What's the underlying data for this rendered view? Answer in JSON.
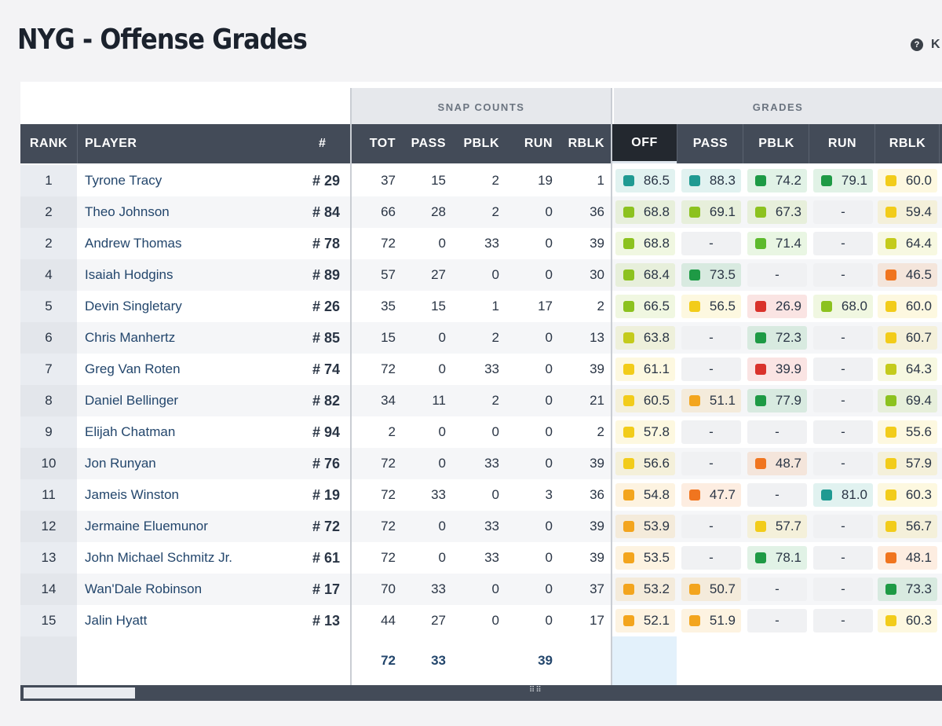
{
  "title": "NYG - Offense Grades",
  "key_label": "K",
  "groups": {
    "snap": "SNAP COUNTS",
    "grades": "GRADES"
  },
  "columns": {
    "rank": "RANK",
    "player": "PLAYER",
    "number": "#",
    "tot": "TOT",
    "pass": "PASS",
    "pblk": "PBLK",
    "run": "RUN",
    "rblk": "RBLK",
    "g_off": "OFF",
    "g_pass": "PASS",
    "g_pblk": "PBLK",
    "g_run": "RUN",
    "g_rblk": "RBLK"
  },
  "rows": [
    {
      "rank": "1",
      "player": "Tyrone Tracy",
      "number": "# 29",
      "tot": "37",
      "pass": "15",
      "pblk": "2",
      "run": "19",
      "rblk": "1",
      "off": "86.5",
      "g_pass": "88.3",
      "g_pblk": "74.2",
      "g_run": "79.1",
      "g_rblk": "60.0"
    },
    {
      "rank": "2",
      "player": "Theo Johnson",
      "number": "# 84",
      "tot": "66",
      "pass": "28",
      "pblk": "2",
      "run": "0",
      "rblk": "36",
      "off": "68.8",
      "g_pass": "69.1",
      "g_pblk": "67.3",
      "g_run": "-",
      "g_rblk": "59.4"
    },
    {
      "rank": "2",
      "player": "Andrew Thomas",
      "number": "# 78",
      "tot": "72",
      "pass": "0",
      "pblk": "33",
      "run": "0",
      "rblk": "39",
      "off": "68.8",
      "g_pass": "-",
      "g_pblk": "71.4",
      "g_run": "-",
      "g_rblk": "64.4"
    },
    {
      "rank": "4",
      "player": "Isaiah Hodgins",
      "number": "# 89",
      "tot": "57",
      "pass": "27",
      "pblk": "0",
      "run": "0",
      "rblk": "30",
      "off": "68.4",
      "g_pass": "73.5",
      "g_pblk": "-",
      "g_run": "-",
      "g_rblk": "46.5"
    },
    {
      "rank": "5",
      "player": "Devin Singletary",
      "number": "# 26",
      "tot": "35",
      "pass": "15",
      "pblk": "1",
      "run": "17",
      "rblk": "2",
      "off": "66.5",
      "g_pass": "56.5",
      "g_pblk": "26.9",
      "g_run": "68.0",
      "g_rblk": "60.0"
    },
    {
      "rank": "6",
      "player": "Chris Manhertz",
      "number": "# 85",
      "tot": "15",
      "pass": "0",
      "pblk": "2",
      "run": "0",
      "rblk": "13",
      "off": "63.8",
      "g_pass": "-",
      "g_pblk": "72.3",
      "g_run": "-",
      "g_rblk": "60.7"
    },
    {
      "rank": "7",
      "player": "Greg Van Roten",
      "number": "# 74",
      "tot": "72",
      "pass": "0",
      "pblk": "33",
      "run": "0",
      "rblk": "39",
      "off": "61.1",
      "g_pass": "-",
      "g_pblk": "39.9",
      "g_run": "-",
      "g_rblk": "64.3"
    },
    {
      "rank": "8",
      "player": "Daniel Bellinger",
      "number": "# 82",
      "tot": "34",
      "pass": "11",
      "pblk": "2",
      "run": "0",
      "rblk": "21",
      "off": "60.5",
      "g_pass": "51.1",
      "g_pblk": "77.9",
      "g_run": "-",
      "g_rblk": "69.4"
    },
    {
      "rank": "9",
      "player": "Elijah Chatman",
      "number": "# 94",
      "tot": "2",
      "pass": "0",
      "pblk": "0",
      "run": "0",
      "rblk": "2",
      "off": "57.8",
      "g_pass": "-",
      "g_pblk": "-",
      "g_run": "-",
      "g_rblk": "55.6"
    },
    {
      "rank": "10",
      "player": "Jon Runyan",
      "number": "# 76",
      "tot": "72",
      "pass": "0",
      "pblk": "33",
      "run": "0",
      "rblk": "39",
      "off": "56.6",
      "g_pass": "-",
      "g_pblk": "48.7",
      "g_run": "-",
      "g_rblk": "57.9"
    },
    {
      "rank": "11",
      "player": "Jameis Winston",
      "number": "# 19",
      "tot": "72",
      "pass": "33",
      "pblk": "0",
      "run": "3",
      "rblk": "36",
      "off": "54.8",
      "g_pass": "47.7",
      "g_pblk": "-",
      "g_run": "81.0",
      "g_rblk": "60.3"
    },
    {
      "rank": "12",
      "player": "Jermaine Eluemunor",
      "number": "# 72",
      "tot": "72",
      "pass": "0",
      "pblk": "33",
      "run": "0",
      "rblk": "39",
      "off": "53.9",
      "g_pass": "-",
      "g_pblk": "57.7",
      "g_run": "-",
      "g_rblk": "56.7"
    },
    {
      "rank": "13",
      "player": "John Michael Schmitz Jr.",
      "number": "# 61",
      "tot": "72",
      "pass": "0",
      "pblk": "33",
      "run": "0",
      "rblk": "39",
      "off": "53.5",
      "g_pass": "-",
      "g_pblk": "78.1",
      "g_run": "-",
      "g_rblk": "48.1"
    },
    {
      "rank": "14",
      "player": "Wan'Dale Robinson",
      "number": "# 17",
      "tot": "70",
      "pass": "33",
      "pblk": "0",
      "run": "0",
      "rblk": "37",
      "off": "53.2",
      "g_pass": "50.7",
      "g_pblk": "-",
      "g_run": "-",
      "g_rblk": "73.3"
    },
    {
      "rank": "15",
      "player": "Jalin Hyatt",
      "number": "# 13",
      "tot": "44",
      "pass": "27",
      "pblk": "0",
      "run": "0",
      "rblk": "17",
      "off": "52.1",
      "g_pass": "51.9",
      "g_pblk": "-",
      "g_run": "-",
      "g_rblk": "60.3"
    }
  ],
  "totals": {
    "tot": "72",
    "pass": "33",
    "run": "39"
  },
  "grade_colors": {
    "elite": "#1f9a92",
    "high": "#1e9a45",
    "good": "#5dba2c",
    "above": "#8cc21f",
    "avg": "#c4cb1c",
    "fair": "#f2cc1a",
    "below": "#f3a51e",
    "poor": "#f0751f",
    "bad": "#d9322b"
  }
}
